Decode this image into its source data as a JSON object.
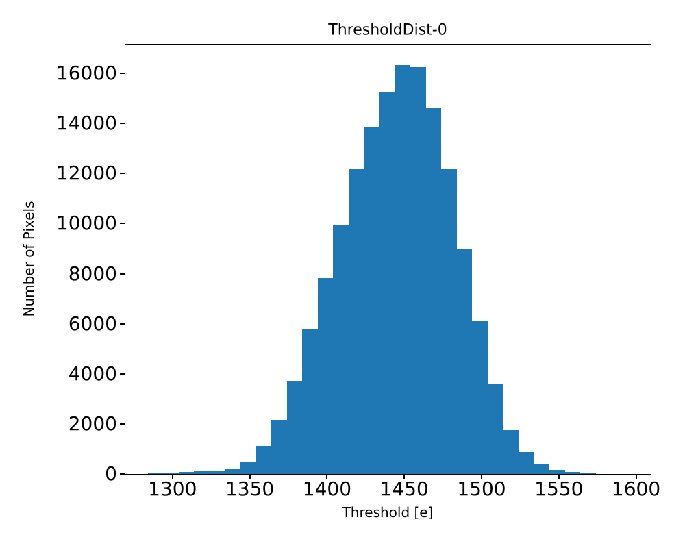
{
  "chart_data": {
    "type": "bar",
    "subtype": "histogram",
    "title": "ThresholdDist-0",
    "xlabel": "Threshold [e]",
    "ylabel": "Number of Pixels",
    "bar_color": "#1f77b4",
    "axis_color": "#000000",
    "background_color": "#ffffff",
    "bin_start": 1284,
    "bin_width": 10,
    "counts": [
      40,
      55,
      70,
      120,
      150,
      220,
      470,
      1120,
      2150,
      3720,
      5810,
      7810,
      9920,
      12170,
      13840,
      15230,
      16330,
      16240,
      14630,
      12170,
      8960,
      6140,
      3590,
      1750,
      880,
      410,
      165,
      80,
      30,
      10,
      5
    ],
    "xticks": [
      1300,
      1350,
      1400,
      1450,
      1500,
      1550,
      1600
    ],
    "yticks": [
      0,
      2000,
      4000,
      6000,
      8000,
      10000,
      12000,
      14000,
      16000
    ],
    "xlim": [
      1269.5,
      1609.5
    ],
    "ylim": [
      0,
      17150
    ],
    "grid": false,
    "legend": false
  }
}
